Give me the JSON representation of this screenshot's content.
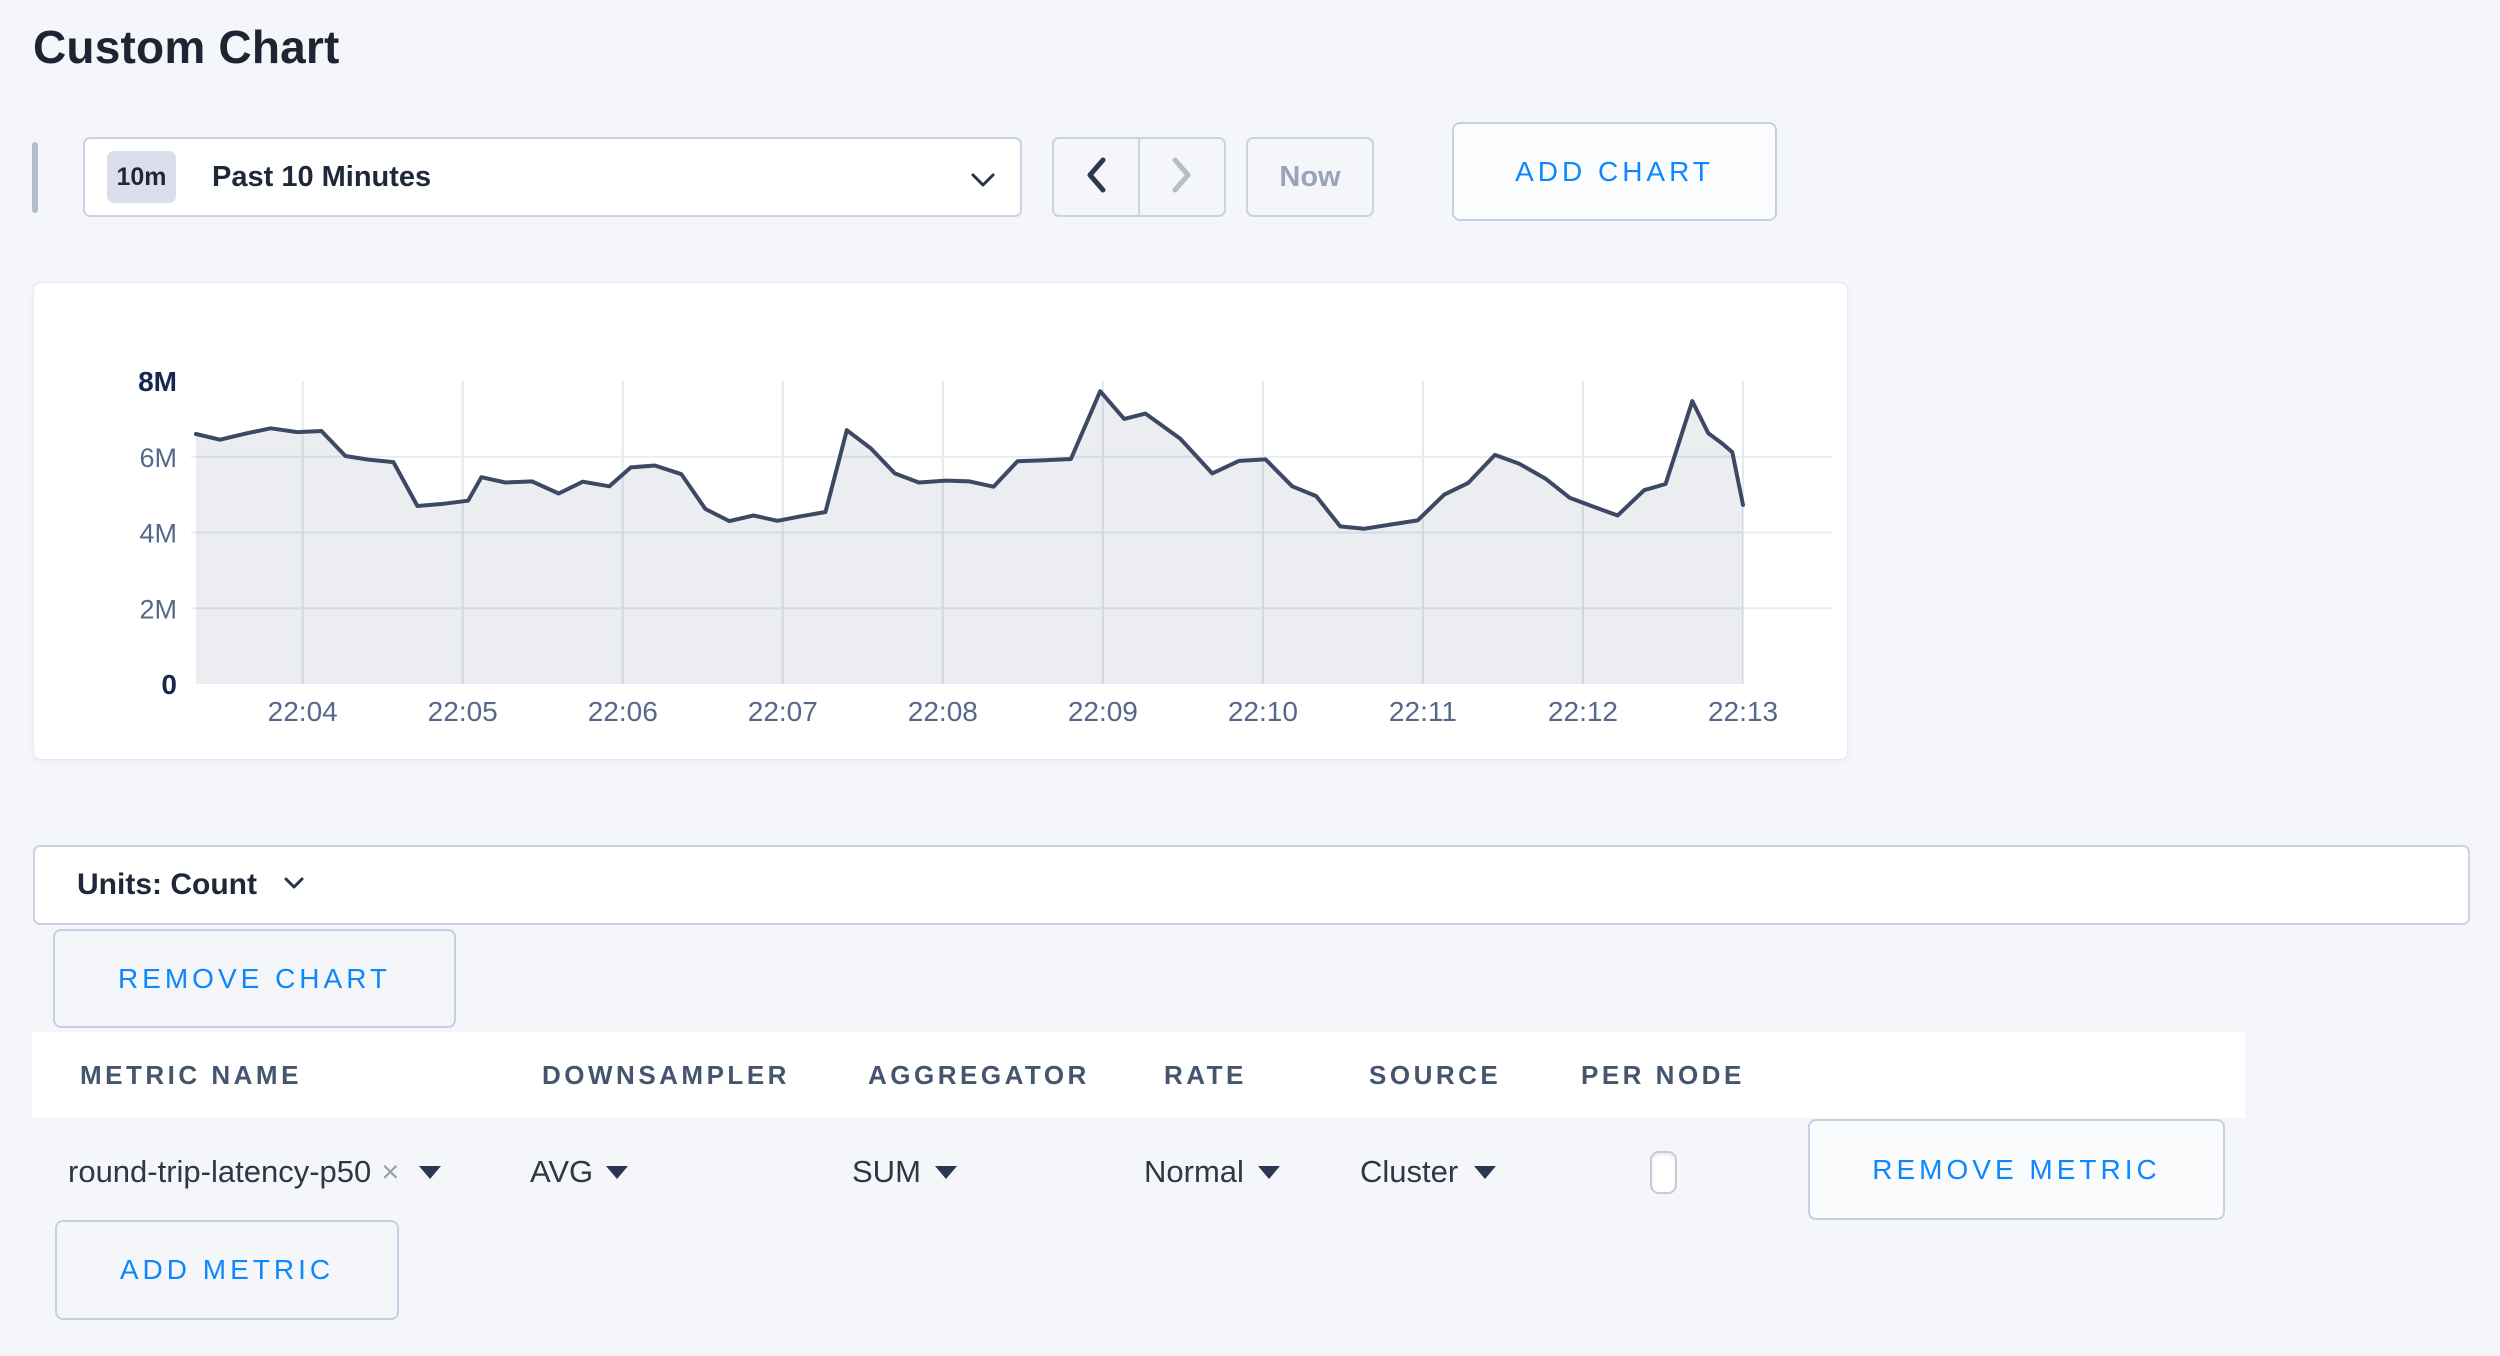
{
  "page": {
    "title": "Custom Chart"
  },
  "colors": {
    "accent_blue": "#0e87fc",
    "page_bg": "#f4f6fa",
    "card_bg": "#ffffff",
    "line": "#3d4963",
    "area_fill": "rgba(62,76,106,0.10)",
    "grid": "#e6eaf2",
    "muted_text": "#9aa4b6",
    "dark_text": "#1e2838"
  },
  "toolbar": {
    "time_badge": "10m",
    "time_label": "Past 10 Minutes",
    "now_label": "Now",
    "add_chart_label": "ADD CHART"
  },
  "icons": {
    "time_select": "chevron-down",
    "prev_button": "chevron-left",
    "next_button": "chevron-right",
    "units_select": "chevron-down",
    "metric_chip_remove": "x",
    "row_selects": "caret-down"
  },
  "chart_data": {
    "type": "area",
    "title": "",
    "xlabel": "",
    "ylabel": "",
    "legend": "none",
    "grid": true,
    "ylim": [
      0,
      8000000
    ],
    "x_range_seconds": 580,
    "y_ticks": [
      {
        "label": "0",
        "value": 0,
        "bold": true,
        "grid": false
      },
      {
        "label": "2M",
        "value": 2000000,
        "bold": false,
        "grid": true
      },
      {
        "label": "4M",
        "value": 4000000,
        "bold": false,
        "grid": true
      },
      {
        "label": "6M",
        "value": 6000000,
        "bold": false,
        "grid": true
      },
      {
        "label": "8M",
        "value": 8000000,
        "bold": true,
        "grid": false
      }
    ],
    "x_ticks": [
      {
        "label": "22:04",
        "t": 40
      },
      {
        "label": "22:05",
        "t": 100
      },
      {
        "label": "22:06",
        "t": 160
      },
      {
        "label": "22:07",
        "t": 220
      },
      {
        "label": "22:08",
        "t": 280
      },
      {
        "label": "22:09",
        "t": 340
      },
      {
        "label": "22:10",
        "t": 400
      },
      {
        "label": "22:11",
        "t": 460
      },
      {
        "label": "22:12",
        "t": 520
      },
      {
        "label": "22:13",
        "t": 580
      }
    ],
    "series": [
      {
        "name": "round-trip-latency-p50",
        "points": [
          [
            0,
            6600000
          ],
          [
            9,
            6450000
          ],
          [
            19,
            6620000
          ],
          [
            28,
            6750000
          ],
          [
            38,
            6650000
          ],
          [
            47,
            6680000
          ],
          [
            56,
            6020000
          ],
          [
            65,
            5920000
          ],
          [
            74,
            5860000
          ],
          [
            83,
            4700000
          ],
          [
            93,
            4760000
          ],
          [
            102,
            4840000
          ],
          [
            107,
            5460000
          ],
          [
            116,
            5320000
          ],
          [
            126,
            5350000
          ],
          [
            136,
            5030000
          ],
          [
            145,
            5340000
          ],
          [
            155,
            5220000
          ],
          [
            163,
            5720000
          ],
          [
            172,
            5770000
          ],
          [
            182,
            5540000
          ],
          [
            191,
            4620000
          ],
          [
            200,
            4300000
          ],
          [
            209,
            4450000
          ],
          [
            218,
            4310000
          ],
          [
            227,
            4430000
          ],
          [
            236,
            4540000
          ],
          [
            244,
            6700000
          ],
          [
            253,
            6220000
          ],
          [
            262,
            5560000
          ],
          [
            271,
            5320000
          ],
          [
            281,
            5370000
          ],
          [
            290,
            5350000
          ],
          [
            299,
            5210000
          ],
          [
            308,
            5880000
          ],
          [
            318,
            5910000
          ],
          [
            328,
            5940000
          ],
          [
            339,
            7730000
          ],
          [
            348,
            7000000
          ],
          [
            356,
            7140000
          ],
          [
            369,
            6480000
          ],
          [
            381,
            5560000
          ],
          [
            391,
            5890000
          ],
          [
            401,
            5930000
          ],
          [
            411,
            5220000
          ],
          [
            420,
            4960000
          ],
          [
            429,
            4160000
          ],
          [
            438,
            4100000
          ],
          [
            448,
            4210000
          ],
          [
            458,
            4320000
          ],
          [
            468,
            5000000
          ],
          [
            477,
            5310000
          ],
          [
            487,
            6050000
          ],
          [
            496,
            5820000
          ],
          [
            506,
            5420000
          ],
          [
            515,
            4920000
          ],
          [
            524,
            4680000
          ],
          [
            533,
            4450000
          ],
          [
            543,
            5120000
          ],
          [
            551,
            5280000
          ],
          [
            561,
            7470000
          ],
          [
            567,
            6620000
          ],
          [
            572,
            6360000
          ],
          [
            576,
            6120000
          ],
          [
            580,
            4730000
          ]
        ]
      }
    ]
  },
  "units_bar": {
    "label": "Units: Count"
  },
  "actions": {
    "remove_chart_label": "REMOVE CHART",
    "add_metric_label": "ADD METRIC",
    "remove_metric_label": "REMOVE METRIC"
  },
  "metrics_table": {
    "headers": [
      "METRIC NAME",
      "DOWNSAMPLER",
      "AGGREGATOR",
      "RATE",
      "SOURCE",
      "PER NODE"
    ],
    "row": {
      "metric_name": "round-trip-latency-p50",
      "downsampler": "AVG",
      "aggregator": "SUM",
      "rate": "Normal",
      "source": "Cluster",
      "per_node_checked": false
    }
  }
}
